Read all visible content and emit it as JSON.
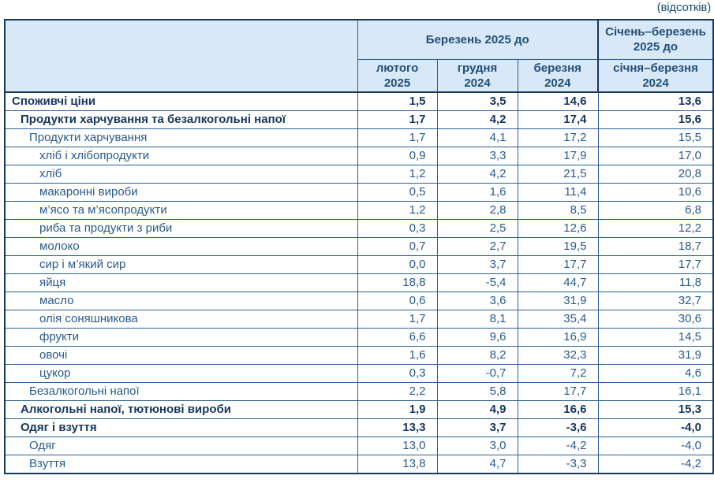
{
  "unit_label": "(відсотків)",
  "colors": {
    "header_bg": "#D9E8F6",
    "header_text": "#1F4E79",
    "text": "#2A5A8C",
    "text_bold": "#17365D",
    "border": "#2B5F94",
    "border_dark": "#17375E"
  },
  "table": {
    "header": {
      "group_main": "Березень 2025 до",
      "group_period": {
        "line1": "Січень–березень",
        "line2": "2025 до"
      },
      "sub": [
        {
          "line1": "лютого",
          "line2": "2025"
        },
        {
          "line1": "грудня",
          "line2": "2024"
        },
        {
          "line1": "березня",
          "line2": "2024"
        },
        {
          "line1": "січня–березня",
          "line2": "2024"
        }
      ]
    },
    "rows": [
      {
        "label": "Споживчі ціни",
        "indent": 0,
        "bold": true,
        "values": [
          "1,5",
          "3,5",
          "14,6",
          "13,6"
        ]
      },
      {
        "label": "Продукти харчування та безалкогольні напої",
        "indent": 1,
        "bold": true,
        "values": [
          "1,7",
          "4,2",
          "17,4",
          "15,6"
        ]
      },
      {
        "label": "Продукти харчування",
        "indent": 2,
        "bold": false,
        "values": [
          "1,7",
          "4,1",
          "17,2",
          "15,5"
        ]
      },
      {
        "label": "хліб і хлібопродукти",
        "indent": 3,
        "bold": false,
        "values": [
          "0,9",
          "3,3",
          "17,9",
          "17,0"
        ]
      },
      {
        "label": "хліб",
        "indent": 3,
        "bold": false,
        "values": [
          "1,2",
          "4,2",
          "21,5",
          "20,8"
        ]
      },
      {
        "label": "макаронні вироби",
        "indent": 3,
        "bold": false,
        "values": [
          "0,5",
          "1,6",
          "11,4",
          "10,6"
        ]
      },
      {
        "label": "м’ясо та м’ясопродукти",
        "indent": 3,
        "bold": false,
        "values": [
          "1,2",
          "2,8",
          "8,5",
          "6,8"
        ]
      },
      {
        "label": "риба та продукти з риби",
        "indent": 3,
        "bold": false,
        "values": [
          "0,3",
          "2,5",
          "12,6",
          "12,2"
        ]
      },
      {
        "label": "молоко",
        "indent": 3,
        "bold": false,
        "values": [
          "0,7",
          "2,7",
          "19,5",
          "18,7"
        ]
      },
      {
        "label": "сир і м’який сир",
        "indent": 3,
        "bold": false,
        "values": [
          "0,0",
          "3,7",
          "17,7",
          "17,7"
        ]
      },
      {
        "label": "яйця",
        "indent": 3,
        "bold": false,
        "values": [
          "18,8",
          "-5,4",
          "44,7",
          "11,8"
        ]
      },
      {
        "label": "масло",
        "indent": 3,
        "bold": false,
        "values": [
          "0,6",
          "3,6",
          "31,9",
          "32,7"
        ]
      },
      {
        "label": "олія соняшникова",
        "indent": 3,
        "bold": false,
        "values": [
          "1,7",
          "8,1",
          "35,4",
          "30,6"
        ]
      },
      {
        "label": "фрукти",
        "indent": 3,
        "bold": false,
        "values": [
          "6,6",
          "9,6",
          "16,9",
          "14,5"
        ]
      },
      {
        "label": "овочі",
        "indent": 3,
        "bold": false,
        "values": [
          "1,6",
          "8,2",
          "32,3",
          "31,9"
        ]
      },
      {
        "label": "цукор",
        "indent": 3,
        "bold": false,
        "values": [
          "0,3",
          "-0,7",
          "7,2",
          "4,6"
        ]
      },
      {
        "label": "Безалкогольні напої",
        "indent": 2,
        "bold": false,
        "values": [
          "2,2",
          "5,8",
          "17,7",
          "16,1"
        ]
      },
      {
        "label": "Алкогольні напої, тютюнові вироби",
        "indent": 1,
        "bold": true,
        "values": [
          "1,9",
          "4,9",
          "16,6",
          "15,3"
        ]
      },
      {
        "label": "Одяг і взуття",
        "indent": 1,
        "bold": true,
        "values": [
          "13,3",
          "3,7",
          "-3,6",
          "-4,0"
        ]
      },
      {
        "label": "Одяг",
        "indent": 2,
        "bold": false,
        "values": [
          "13,0",
          "3,0",
          "-4,2",
          "-4,0"
        ]
      },
      {
        "label": "Взуття",
        "indent": 2,
        "bold": false,
        "values": [
          "13,8",
          "4,7",
          "-3,3",
          "-4,2"
        ]
      }
    ]
  }
}
